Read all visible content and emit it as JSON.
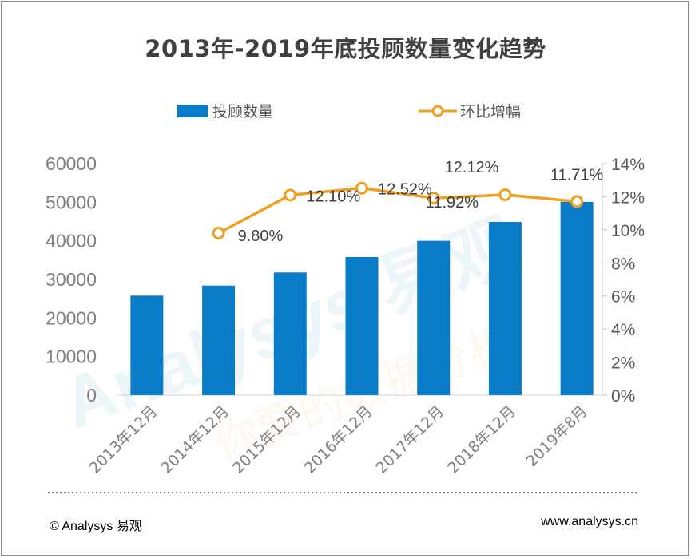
{
  "footer": {
    "copyright": "© Analysys 易观",
    "url": "www.analysys.cn"
  },
  "watermark": "Analysys 易观 你要的数据分析",
  "chart_data": {
    "type": "bar+line",
    "title": "2013年-2019年底投顾数量变化趋势",
    "categories": [
      "2013年12月",
      "2014年12月",
      "2015年12月",
      "2016年12月",
      "2017年12月",
      "2018年12月",
      "2019年8月"
    ],
    "series": [
      {
        "name": "投顾数量",
        "type": "bar",
        "axis": "left",
        "color": "#0a7cc7",
        "values": [
          25800,
          28400,
          31800,
          35800,
          40000,
          44900,
          50100
        ]
      },
      {
        "name": "环比增幅",
        "type": "line",
        "axis": "right",
        "color": "#f0a020",
        "values": [
          null,
          9.8,
          12.1,
          12.52,
          11.92,
          12.12,
          11.71
        ],
        "labels": [
          "",
          "9.80%",
          "12.10%",
          "12.52%",
          "11.92%",
          "12.12%",
          "11.71%"
        ]
      }
    ],
    "y_left": {
      "min": 0,
      "max": 60000,
      "ticks": [
        "0",
        "10000",
        "20000",
        "30000",
        "40000",
        "50000",
        "60000"
      ]
    },
    "y_right": {
      "min": 0,
      "max": 14,
      "ticks": [
        "0%",
        "2%",
        "4%",
        "6%",
        "8%",
        "10%",
        "12%",
        "14%"
      ]
    },
    "legend_position": "top",
    "grid": false
  }
}
